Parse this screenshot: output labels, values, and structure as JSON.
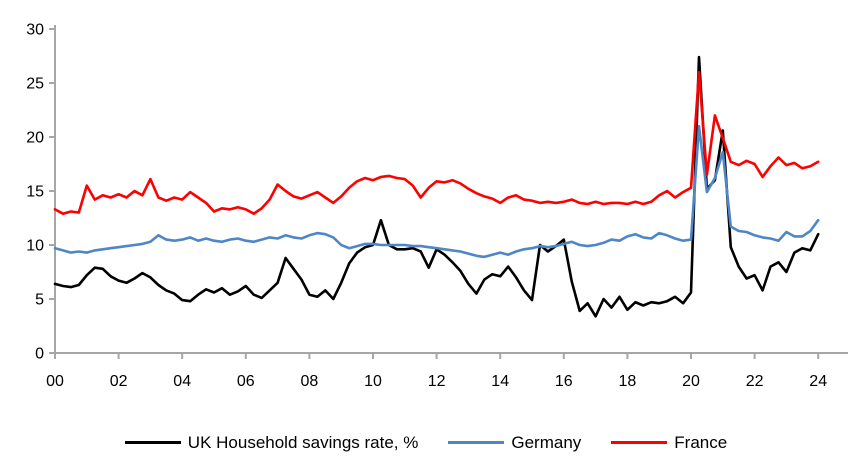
{
  "chart_data": {
    "type": "line",
    "title": "",
    "xlabel": "",
    "ylabel": "",
    "grid": false,
    "legend_position": "bottom",
    "background_color": "#ffffff",
    "axis_color": "#a6a6a6",
    "tick_label_color": "#000000",
    "x_axis": {
      "tick_labels": [
        "00",
        "02",
        "04",
        "06",
        "08",
        "10",
        "12",
        "14",
        "16",
        "18",
        "20",
        "22",
        "24"
      ],
      "start_year": 2000,
      "end_year": 2024,
      "frequency": "quarterly"
    },
    "y_axis": {
      "min": 0,
      "max": 30,
      "tick_step": 5,
      "tick_labels": [
        "0",
        "5",
        "10",
        "15",
        "20",
        "25",
        "30"
      ]
    },
    "series": [
      {
        "name": "UK Household savings rate, %",
        "color": "#000000",
        "values": [
          6.4,
          6.2,
          6.1,
          6.3,
          7.2,
          7.9,
          7.8,
          7.1,
          6.7,
          6.5,
          6.9,
          7.4,
          7.0,
          6.3,
          5.8,
          5.5,
          4.9,
          4.8,
          5.4,
          5.9,
          5.6,
          6.0,
          5.4,
          5.7,
          6.2,
          5.4,
          5.1,
          5.8,
          6.5,
          8.8,
          7.8,
          6.8,
          5.4,
          5.2,
          5.8,
          5.0,
          6.5,
          8.3,
          9.3,
          9.8,
          10.0,
          12.3,
          10.0,
          9.6,
          9.6,
          9.7,
          9.4,
          7.9,
          9.6,
          9.1,
          8.4,
          7.6,
          6.4,
          5.5,
          6.8,
          7.3,
          7.1,
          8.0,
          7.0,
          5.8,
          4.9,
          10.0,
          9.4,
          9.9,
          10.5,
          6.6,
          3.9,
          4.6,
          3.4,
          5.0,
          4.2,
          5.2,
          4.0,
          4.7,
          4.4,
          4.7,
          4.6,
          4.8,
          5.2,
          4.6,
          5.6,
          27.4,
          15.2,
          16.0,
          20.6,
          9.8,
          8.0,
          6.9,
          7.2,
          5.8,
          8.0,
          8.4,
          7.5,
          9.3,
          9.7,
          9.5,
          11.0
        ]
      },
      {
        "name": "Germany",
        "color": "#4f86c6",
        "values": [
          9.7,
          9.5,
          9.3,
          9.4,
          9.3,
          9.5,
          9.6,
          9.7,
          9.8,
          9.9,
          10.0,
          10.1,
          10.3,
          10.9,
          10.5,
          10.4,
          10.5,
          10.7,
          10.4,
          10.6,
          10.4,
          10.3,
          10.5,
          10.6,
          10.4,
          10.3,
          10.5,
          10.7,
          10.6,
          10.9,
          10.7,
          10.6,
          10.9,
          11.1,
          11.0,
          10.7,
          10.0,
          9.7,
          9.9,
          10.1,
          10.1,
          10.0,
          10.0,
          10.0,
          10.0,
          9.9,
          9.9,
          9.8,
          9.7,
          9.6,
          9.5,
          9.4,
          9.2,
          9.0,
          8.9,
          9.1,
          9.3,
          9.1,
          9.4,
          9.6,
          9.7,
          9.9,
          9.8,
          9.9,
          10.1,
          10.3,
          10.0,
          9.9,
          10.0,
          10.2,
          10.5,
          10.4,
          10.8,
          11.0,
          10.7,
          10.6,
          11.1,
          10.9,
          10.6,
          10.4,
          10.5,
          21.0,
          14.9,
          16.2,
          18.6,
          11.7,
          11.3,
          11.2,
          10.9,
          10.7,
          10.6,
          10.4,
          11.2,
          10.8,
          10.8,
          11.3,
          12.3
        ]
      },
      {
        "name": "France",
        "color": "#fe0000",
        "values": [
          13.3,
          12.9,
          13.1,
          13.0,
          15.5,
          14.2,
          14.6,
          14.4,
          14.7,
          14.4,
          15.0,
          14.6,
          16.1,
          14.4,
          14.1,
          14.4,
          14.2,
          14.9,
          14.4,
          13.9,
          13.1,
          13.4,
          13.3,
          13.5,
          13.3,
          12.9,
          13.4,
          14.2,
          15.6,
          15.0,
          14.5,
          14.3,
          14.6,
          14.9,
          14.4,
          13.9,
          14.5,
          15.3,
          15.9,
          16.2,
          16.0,
          16.3,
          16.4,
          16.2,
          16.1,
          15.5,
          14.4,
          15.3,
          15.9,
          15.8,
          16.0,
          15.7,
          15.2,
          14.8,
          14.5,
          14.3,
          13.9,
          14.4,
          14.6,
          14.2,
          14.1,
          13.9,
          14.0,
          13.9,
          14.0,
          14.2,
          13.9,
          13.8,
          14.0,
          13.8,
          13.9,
          13.9,
          13.8,
          14.0,
          13.8,
          14.0,
          14.6,
          15.0,
          14.4,
          14.9,
          15.3,
          26.0,
          16.5,
          22.0,
          19.9,
          17.7,
          17.4,
          17.8,
          17.5,
          16.3,
          17.3,
          18.1,
          17.4,
          17.6,
          17.1,
          17.3,
          17.7
        ]
      }
    ]
  }
}
